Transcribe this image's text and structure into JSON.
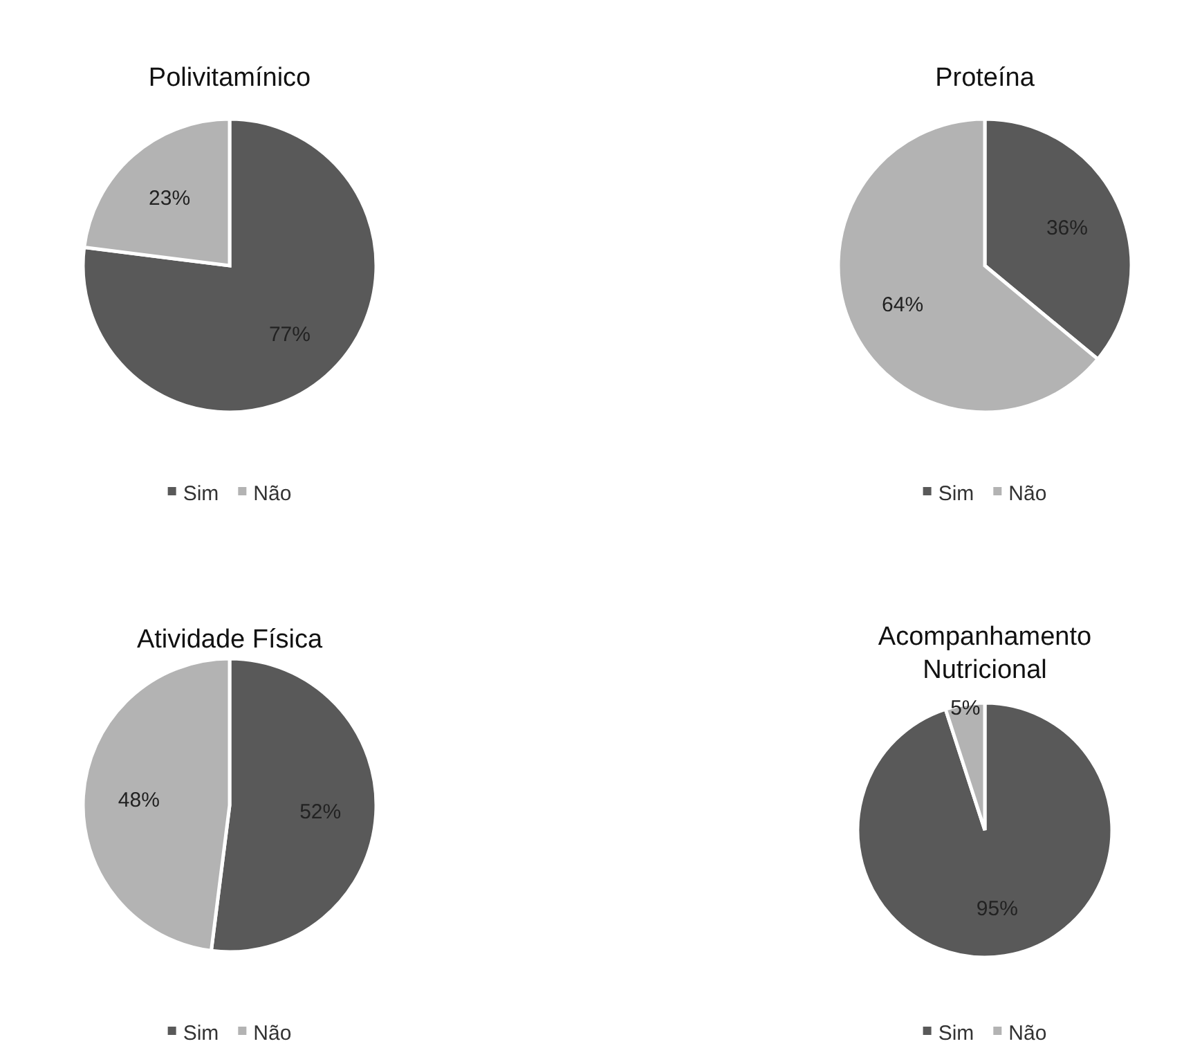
{
  "chart_data": [
    {
      "type": "pie",
      "title": "Polivitamínico",
      "categories": [
        "Sim",
        "Não"
      ],
      "values": [
        77,
        23
      ],
      "colors": [
        "#595959",
        "#b3b3b3"
      ],
      "value_labels": [
        "77%",
        "23%"
      ],
      "legend": "bottom"
    },
    {
      "type": "pie",
      "title": "Proteína",
      "categories": [
        "Sim",
        "Não"
      ],
      "values": [
        36,
        64
      ],
      "colors": [
        "#595959",
        "#b3b3b3"
      ],
      "value_labels": [
        "36%",
        "64%"
      ],
      "legend": "bottom"
    },
    {
      "type": "pie",
      "title": "Atividade Física",
      "categories": [
        "Sim",
        "Não"
      ],
      "values": [
        52,
        48
      ],
      "colors": [
        "#595959",
        "#b3b3b3"
      ],
      "value_labels": [
        "52%",
        "48%"
      ],
      "legend": "bottom"
    },
    {
      "type": "pie",
      "title": "Acompanhamento Nutricional",
      "categories": [
        "Sim",
        "Não"
      ],
      "values": [
        95,
        5
      ],
      "colors": [
        "#595959",
        "#b3b3b3"
      ],
      "value_labels": [
        "95%",
        "5%"
      ],
      "legend": "bottom"
    }
  ]
}
